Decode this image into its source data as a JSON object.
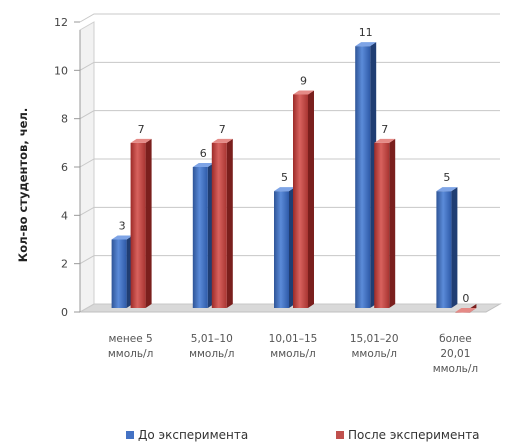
{
  "chart_data": {
    "type": "bar",
    "categories": [
      [
        "менее 5",
        "ммоль/л"
      ],
      [
        "5,01–10",
        "ммоль/л"
      ],
      [
        "10,01–15",
        "ммоль/л"
      ],
      [
        "15,01–20",
        "ммоль/л"
      ],
      [
        "более",
        "20,01",
        "ммоль/л"
      ]
    ],
    "series": [
      {
        "name": "До эксперимента",
        "values": [
          3,
          6,
          5,
          11,
          5
        ],
        "color": "#4472C4"
      },
      {
        "name": "После эксперимента",
        "values": [
          7,
          7,
          9,
          7,
          0
        ],
        "color": "#C0504D"
      }
    ],
    "ylabel": "Кол-во студентов, чел.",
    "ylim": [
      0,
      12
    ],
    "yticks": [
      0,
      2,
      4,
      6,
      8,
      10,
      12
    ],
    "grid": true,
    "legend_position": "bottom",
    "three_d": true
  }
}
